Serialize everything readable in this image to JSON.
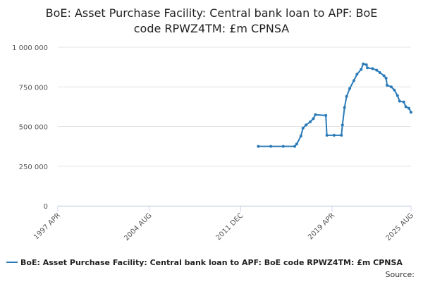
{
  "chart_data": {
    "type": "line",
    "title": [
      "BoE: Asset Purchase Facility: Central bank loan to APF: BoE",
      "code RPWZ4TM: £m CPNSA"
    ],
    "source": "Source:",
    "xlim": [
      "1997-04",
      "2025-08"
    ],
    "xticks": [
      {
        "value": "1997-04",
        "label": "1997 APR"
      },
      {
        "value": "2004-08",
        "label": "2004 AUG"
      },
      {
        "value": "2011-12",
        "label": "2011 DEC"
      },
      {
        "value": "2019-04",
        "label": "2019 APR"
      },
      {
        "value": "2025-08",
        "label": "2025 AUG"
      }
    ],
    "ylim": [
      0,
      1000000
    ],
    "yticks": [
      0,
      {
        "value": 250000,
        "label": "250 000"
      },
      {
        "value": 500000,
        "label": "500 000"
      },
      {
        "value": 750000,
        "label": "750 000"
      },
      {
        "value": 1000000,
        "label": "1 000 000"
      }
    ],
    "grid": true,
    "x": [
      "2013-05",
      "2014-05",
      "2015-05",
      "2016-04",
      "2016-06",
      "2016-10",
      "2016-12",
      "2017-03",
      "2017-07",
      "2017-10",
      "2017-12",
      "2018-10",
      "2018-11",
      "2019-06",
      "2020-01",
      "2020-02",
      "2020-04",
      "2020-06",
      "2020-09",
      "2021-01",
      "2021-04",
      "2021-08",
      "2021-10",
      "2022-01",
      "2022-02",
      "2022-07",
      "2022-11",
      "2023-02",
      "2023-06",
      "2023-08",
      "2023-09",
      "2024-01",
      "2024-04",
      "2024-07",
      "2024-09",
      "2025-01",
      "2025-03",
      "2025-06",
      "2025-08"
    ],
    "series": [
      {
        "name": "BoE: Asset Purchase Facility: Central bank loan to APF: BoE code RPWZ4TM: £m CPNSA",
        "color": "#2a7ab8",
        "values": [
          375000,
          375000,
          375000,
          375000,
          390000,
          440000,
          490000,
          510000,
          530000,
          550000,
          575000,
          570000,
          445000,
          445000,
          445000,
          510000,
          620000,
          690000,
          740000,
          790000,
          830000,
          860000,
          895000,
          890000,
          870000,
          865000,
          855000,
          840000,
          820000,
          805000,
          760000,
          750000,
          730000,
          695000,
          660000,
          655000,
          625000,
          615000,
          590000
        ]
      }
    ]
  }
}
